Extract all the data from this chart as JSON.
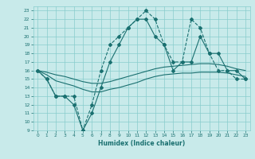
{
  "xlabel": "Humidex (Indice chaleur)",
  "bg_color": "#c8eaea",
  "grid_color": "#88cccc",
  "line_color": "#1a7070",
  "xlim": [
    -0.5,
    23.5
  ],
  "ylim": [
    9,
    23.5
  ],
  "xticks": [
    0,
    1,
    2,
    3,
    4,
    5,
    6,
    7,
    8,
    9,
    10,
    11,
    12,
    13,
    14,
    15,
    16,
    17,
    18,
    19,
    20,
    21,
    22,
    23
  ],
  "yticks": [
    9,
    10,
    11,
    12,
    13,
    14,
    15,
    16,
    17,
    18,
    19,
    20,
    21,
    22,
    23
  ],
  "series_dashed": {
    "x": [
      0,
      1,
      2,
      3,
      4,
      5,
      6,
      7,
      8,
      9,
      10,
      11,
      12,
      13,
      14,
      15,
      16,
      17,
      18,
      19,
      20,
      21,
      22,
      23
    ],
    "y": [
      16,
      15,
      13,
      13,
      13,
      9,
      12,
      16,
      19,
      20,
      21,
      22,
      23,
      22,
      19,
      17,
      17,
      22,
      21,
      18,
      16,
      16,
      15,
      15
    ]
  },
  "series_solid_marker": {
    "x": [
      0,
      1,
      2,
      3,
      4,
      5,
      6,
      7,
      8,
      9,
      10,
      11,
      12,
      13,
      14,
      15,
      16,
      17,
      18,
      19,
      20,
      21,
      22,
      23
    ],
    "y": [
      16,
      15,
      13,
      13,
      12,
      9,
      11,
      14,
      17,
      19,
      21,
      22,
      22,
      20,
      19,
      16,
      17,
      17,
      20,
      18,
      18,
      16,
      16,
      15
    ]
  },
  "series_smooth1": {
    "x": [
      0,
      1,
      2,
      3,
      4,
      5,
      6,
      7,
      8,
      9,
      10,
      11,
      12,
      13,
      14,
      15,
      16,
      17,
      18,
      19,
      20,
      21,
      22,
      23
    ],
    "y": [
      16,
      15.8,
      15.5,
      15.3,
      15.0,
      14.7,
      14.5,
      14.5,
      14.7,
      15.0,
      15.3,
      15.6,
      15.9,
      16.2,
      16.4,
      16.5,
      16.6,
      16.7,
      16.8,
      16.8,
      16.7,
      16.5,
      16.2,
      16.0
    ]
  },
  "series_smooth2": {
    "x": [
      0,
      1,
      2,
      3,
      4,
      5,
      6,
      7,
      8,
      9,
      10,
      11,
      12,
      13,
      14,
      15,
      16,
      17,
      18,
      19,
      20,
      21,
      22,
      23
    ],
    "y": [
      16,
      15.5,
      14.8,
      14.5,
      14.2,
      13.8,
      13.5,
      13.5,
      13.8,
      14.0,
      14.3,
      14.6,
      15.0,
      15.3,
      15.5,
      15.6,
      15.7,
      15.7,
      15.8,
      15.8,
      15.8,
      15.7,
      15.5,
      15.3
    ]
  }
}
